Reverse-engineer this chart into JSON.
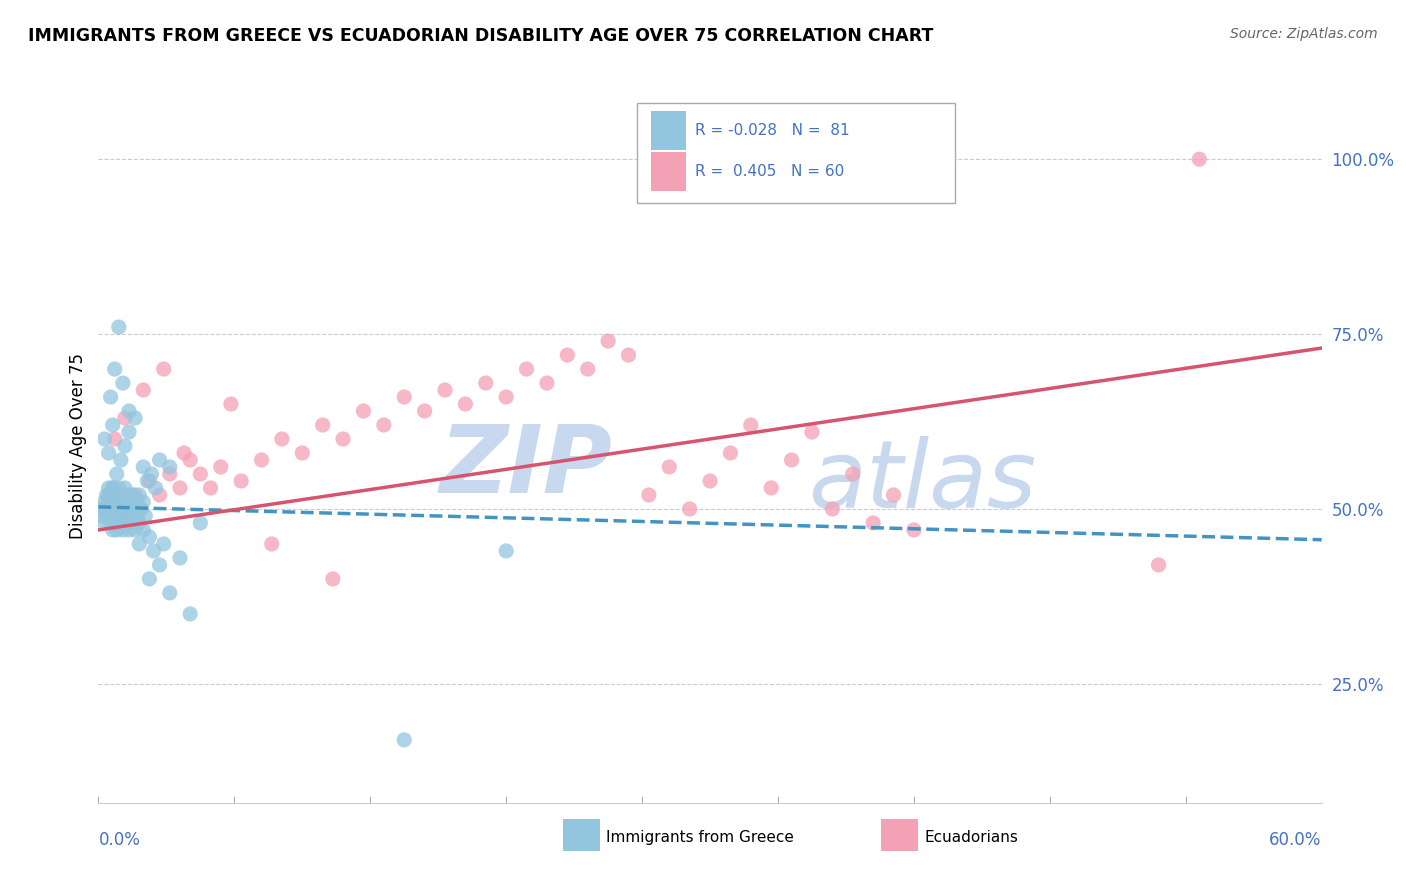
{
  "title": "IMMIGRANTS FROM GREECE VS ECUADORIAN DISABILITY AGE OVER 75 CORRELATION CHART",
  "source": "Source: ZipAtlas.com",
  "ylabel": "Disability Age Over 75",
  "right_ytick_labels": [
    "100.0%",
    "75.0%",
    "50.0%",
    "25.0%"
  ],
  "right_ytick_values": [
    1.0,
    0.75,
    0.5,
    0.25
  ],
  "blue_color": "#92c5de",
  "pink_color": "#f4a0b5",
  "blue_line_color": "#4393c3",
  "pink_line_color": "#d6546e",
  "xmin": 0.0,
  "xmax": 0.6,
  "ymin": 0.08,
  "ymax": 1.1,
  "blue_scatter_x": [
    0.001,
    0.002,
    0.003,
    0.003,
    0.004,
    0.004,
    0.005,
    0.005,
    0.005,
    0.006,
    0.006,
    0.006,
    0.007,
    0.007,
    0.007,
    0.008,
    0.008,
    0.008,
    0.008,
    0.009,
    0.009,
    0.009,
    0.01,
    0.01,
    0.01,
    0.011,
    0.011,
    0.011,
    0.012,
    0.012,
    0.013,
    0.013,
    0.014,
    0.014,
    0.015,
    0.015,
    0.016,
    0.016,
    0.017,
    0.017,
    0.018,
    0.018,
    0.019,
    0.019,
    0.02,
    0.02,
    0.021,
    0.022,
    0.022,
    0.023,
    0.024,
    0.025,
    0.026,
    0.027,
    0.028,
    0.03,
    0.032,
    0.035,
    0.04,
    0.05,
    0.003,
    0.005,
    0.007,
    0.009,
    0.011,
    0.013,
    0.015,
    0.018,
    0.022,
    0.03,
    0.01,
    0.008,
    0.012,
    0.006,
    0.015,
    0.02,
    0.025,
    0.035,
    0.045,
    0.2,
    0.15
  ],
  "blue_scatter_y": [
    0.5,
    0.49,
    0.51,
    0.48,
    0.52,
    0.5,
    0.49,
    0.51,
    0.53,
    0.48,
    0.5,
    0.52,
    0.47,
    0.51,
    0.53,
    0.49,
    0.51,
    0.53,
    0.48,
    0.5,
    0.52,
    0.47,
    0.49,
    0.51,
    0.53,
    0.48,
    0.5,
    0.52,
    0.47,
    0.51,
    0.49,
    0.53,
    0.48,
    0.5,
    0.52,
    0.47,
    0.49,
    0.51,
    0.48,
    0.52,
    0.5,
    0.47,
    0.49,
    0.51,
    0.48,
    0.52,
    0.5,
    0.47,
    0.51,
    0.49,
    0.54,
    0.46,
    0.55,
    0.44,
    0.53,
    0.57,
    0.45,
    0.56,
    0.43,
    0.48,
    0.6,
    0.58,
    0.62,
    0.55,
    0.57,
    0.59,
    0.61,
    0.63,
    0.56,
    0.42,
    0.76,
    0.7,
    0.68,
    0.66,
    0.64,
    0.45,
    0.4,
    0.38,
    0.35,
    0.44,
    0.17
  ],
  "pink_scatter_x": [
    0.003,
    0.005,
    0.007,
    0.01,
    0.012,
    0.015,
    0.018,
    0.02,
    0.025,
    0.03,
    0.035,
    0.04,
    0.045,
    0.05,
    0.055,
    0.06,
    0.07,
    0.08,
    0.09,
    0.1,
    0.11,
    0.12,
    0.13,
    0.14,
    0.15,
    0.16,
    0.17,
    0.18,
    0.19,
    0.2,
    0.21,
    0.22,
    0.23,
    0.24,
    0.25,
    0.26,
    0.27,
    0.28,
    0.29,
    0.3,
    0.31,
    0.32,
    0.33,
    0.34,
    0.35,
    0.36,
    0.37,
    0.38,
    0.39,
    0.4,
    0.008,
    0.013,
    0.022,
    0.032,
    0.042,
    0.065,
    0.085,
    0.115,
    0.52,
    0.54
  ],
  "pink_scatter_y": [
    0.5,
    0.52,
    0.53,
    0.51,
    0.49,
    0.48,
    0.52,
    0.5,
    0.54,
    0.52,
    0.55,
    0.53,
    0.57,
    0.55,
    0.53,
    0.56,
    0.54,
    0.57,
    0.6,
    0.58,
    0.62,
    0.6,
    0.64,
    0.62,
    0.66,
    0.64,
    0.67,
    0.65,
    0.68,
    0.66,
    0.7,
    0.68,
    0.72,
    0.7,
    0.74,
    0.72,
    0.52,
    0.56,
    0.5,
    0.54,
    0.58,
    0.62,
    0.53,
    0.57,
    0.61,
    0.5,
    0.55,
    0.48,
    0.52,
    0.47,
    0.6,
    0.63,
    0.67,
    0.7,
    0.58,
    0.65,
    0.45,
    0.4,
    0.42,
    1.0
  ],
  "blue_trend_x": [
    0.0,
    0.6
  ],
  "blue_trend_y": [
    0.503,
    0.456
  ],
  "pink_trend_x": [
    0.0,
    0.6
  ],
  "pink_trend_y": [
    0.47,
    0.73
  ],
  "watermark_zip": "ZIP",
  "watermark_atlas": "atlas",
  "watermark_color": "#c8d8ee",
  "background_color": "#ffffff",
  "grid_color": "#cccccc"
}
